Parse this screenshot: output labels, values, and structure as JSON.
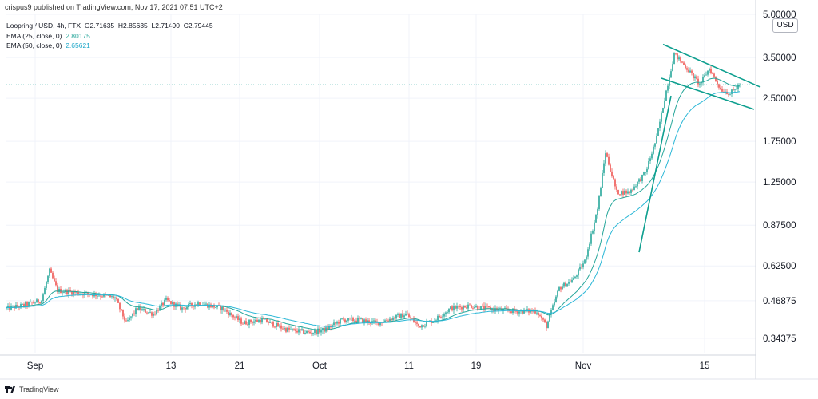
{
  "header": {
    "published_line": "crispus9 published on TradingView.com, Nov 17, 2021 07:51 UTC+2"
  },
  "legend": {
    "symbol": "Loopring / USD, 4h, FTX",
    "open_label": "O",
    "open": "2.71635",
    "high_label": "H",
    "high": "2.85635",
    "low_label": "L",
    "low": "2.71490",
    "close_label": "C",
    "close": "2.79445",
    "ema25_label": "EMA (25, close, 0)",
    "ema25_value": "2.80175",
    "ema50_label": "EMA (50, close, 0)",
    "ema50_value": "2.65621"
  },
  "currency_badge": "USD",
  "footer": {
    "brand": "TradingView"
  },
  "colors": {
    "up": "#26a69a",
    "down": "#ef5350",
    "ema25": "#26a69a",
    "ema50": "#2bb7d6",
    "trendline": "#0e9f8f",
    "last_price_line": "#26a69a",
    "grid": "#f0f3fa"
  },
  "chart_data": {
    "type": "candlestick",
    "symbol": "Loopring / USD",
    "interval": "4h",
    "exchange": "FTX",
    "y_scale": "log",
    "ylim": [
      0.305,
      5.0
    ],
    "y_ticks": [
      "5.00000",
      "3.50000",
      "2.50000",
      "1.75000",
      "1.25000",
      "0.87500",
      "0.62500",
      "0.46875",
      "0.34375"
    ],
    "y_tick_values": [
      5.0,
      3.5,
      2.5,
      1.75,
      1.25,
      0.875,
      0.625,
      0.46875,
      0.34375
    ],
    "x_ticks": [
      "Sep",
      "13",
      "21",
      "Oct",
      "11",
      "19",
      "Nov",
      "15"
    ],
    "x_tick_index": [
      18,
      103,
      146,
      196,
      252,
      294,
      361,
      437
    ],
    "bar_count": 460,
    "last_price": 2.79445,
    "anchors": [
      [
        0,
        0.44
      ],
      [
        10,
        0.45
      ],
      [
        22,
        0.47
      ],
      [
        27,
        0.6
      ],
      [
        32,
        0.51
      ],
      [
        45,
        0.5
      ],
      [
        60,
        0.49
      ],
      [
        68,
        0.48
      ],
      [
        75,
        0.39
      ],
      [
        82,
        0.44
      ],
      [
        92,
        0.42
      ],
      [
        100,
        0.47
      ],
      [
        110,
        0.44
      ],
      [
        120,
        0.46
      ],
      [
        135,
        0.44
      ],
      [
        148,
        0.39
      ],
      [
        160,
        0.4
      ],
      [
        175,
        0.37
      ],
      [
        190,
        0.36
      ],
      [
        200,
        0.37
      ],
      [
        210,
        0.4
      ],
      [
        220,
        0.4
      ],
      [
        232,
        0.39
      ],
      [
        250,
        0.42
      ],
      [
        258,
        0.38
      ],
      [
        268,
        0.4
      ],
      [
        278,
        0.44
      ],
      [
        290,
        0.45
      ],
      [
        300,
        0.44
      ],
      [
        318,
        0.43
      ],
      [
        332,
        0.43
      ],
      [
        338,
        0.38
      ],
      [
        346,
        0.52
      ],
      [
        355,
        0.56
      ],
      [
        362,
        0.65
      ],
      [
        370,
        1.0
      ],
      [
        375,
        1.6
      ],
      [
        382,
        1.15
      ],
      [
        390,
        1.15
      ],
      [
        400,
        1.35
      ],
      [
        407,
        1.8
      ],
      [
        412,
        2.5
      ],
      [
        418,
        3.6
      ],
      [
        426,
        3.2
      ],
      [
        434,
        2.8
      ],
      [
        440,
        3.2
      ],
      [
        447,
        2.7
      ],
      [
        453,
        2.6
      ],
      [
        459,
        2.79
      ]
    ],
    "ema_periods": [
      25,
      50
    ],
    "trendlines": [
      {
        "name": "channel-upper",
        "points": [
          [
            411,
            3.9
          ],
          [
            472,
            2.74
          ]
        ]
      },
      {
        "name": "channel-lower",
        "points": [
          [
            410,
            2.95
          ],
          [
            468,
            2.28
          ]
        ]
      },
      {
        "name": "support-line",
        "points": [
          [
            396,
            0.7
          ],
          [
            416,
            2.55
          ]
        ]
      }
    ]
  }
}
